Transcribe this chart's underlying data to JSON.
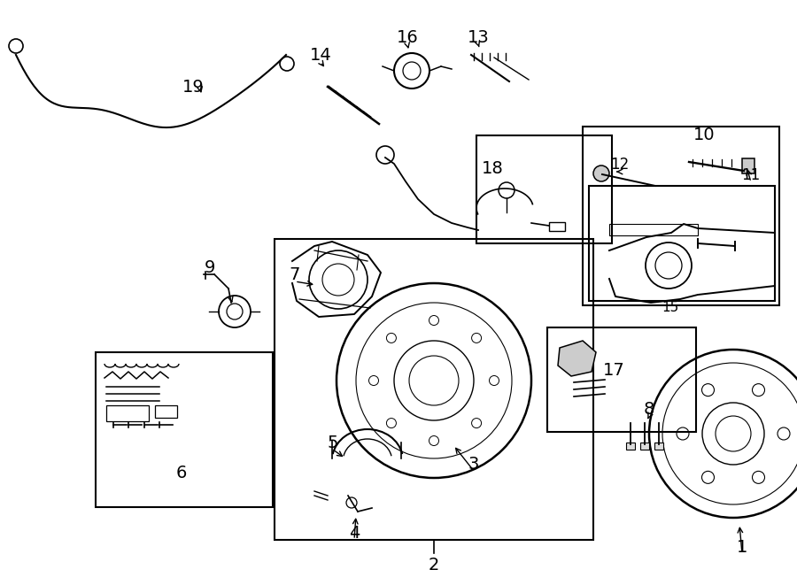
{
  "bg_color": "#ffffff",
  "fig_width": 9.0,
  "fig_height": 6.61,
  "label_data": [
    [
      "1",
      838,
      618,
      835,
      592,
      14
    ],
    [
      "2",
      490,
      638,
      null,
      null,
      14
    ],
    [
      "3",
      535,
      524,
      512,
      503,
      14
    ],
    [
      "4",
      400,
      602,
      402,
      582,
      14
    ],
    [
      "5",
      376,
      500,
      390,
      518,
      14
    ],
    [
      "6",
      205,
      535,
      null,
      null,
      14
    ],
    [
      "7",
      333,
      310,
      357,
      322,
      14
    ],
    [
      "8",
      733,
      462,
      730,
      476,
      14
    ],
    [
      "9",
      237,
      303,
      null,
      null,
      14
    ],
    [
      "10",
      795,
      153,
      null,
      null,
      14
    ],
    [
      "11",
      848,
      198,
      843,
      188,
      12
    ],
    [
      "12",
      700,
      186,
      693,
      194,
      12
    ],
    [
      "13",
      540,
      42,
      542,
      56,
      14
    ],
    [
      "14",
      362,
      62,
      368,
      78,
      14
    ],
    [
      "15",
      757,
      348,
      null,
      null,
      11
    ],
    [
      "16",
      460,
      42,
      462,
      58,
      14
    ],
    [
      "17",
      693,
      418,
      null,
      null,
      14
    ],
    [
      "18",
      556,
      190,
      null,
      null,
      14
    ],
    [
      "19",
      218,
      98,
      null,
      null,
      14
    ]
  ]
}
